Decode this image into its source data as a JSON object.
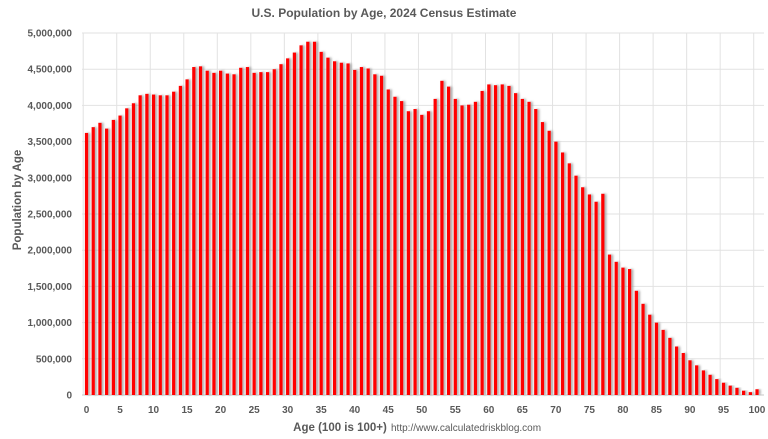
{
  "chart_data": {
    "type": "bar",
    "title": "U.S. Population by Age, 2024 Census Estimate",
    "xlabel": "Age (100 is 100+)",
    "ylabel": "Population by Age",
    "source": "http://www.calculatedriskblog.com",
    "ylim": [
      0,
      5000000
    ],
    "y_ticks": [
      "0",
      "500,000",
      "1,000,000",
      "1,500,000",
      "2,000,000",
      "2,500,000",
      "3,000,000",
      "3,500,000",
      "4,000,000",
      "4,500,000",
      "5,000,000"
    ],
    "x_ticks": [
      "0",
      "5",
      "10",
      "15",
      "20",
      "25",
      "30",
      "35",
      "40",
      "45",
      "50",
      "55",
      "60",
      "65",
      "70",
      "75",
      "80",
      "85",
      "90",
      "95",
      "100"
    ],
    "grid": true,
    "bar_color": "#ff0000",
    "categories_start": 0,
    "values": [
      3620000,
      3700000,
      3760000,
      3680000,
      3800000,
      3860000,
      3960000,
      4030000,
      4140000,
      4160000,
      4150000,
      4140000,
      4140000,
      4190000,
      4270000,
      4360000,
      4530000,
      4540000,
      4480000,
      4450000,
      4480000,
      4440000,
      4430000,
      4520000,
      4530000,
      4450000,
      4460000,
      4460000,
      4500000,
      4570000,
      4650000,
      4730000,
      4830000,
      4880000,
      4880000,
      4740000,
      4660000,
      4610000,
      4590000,
      4580000,
      4490000,
      4530000,
      4510000,
      4430000,
      4410000,
      4220000,
      4120000,
      4060000,
      3920000,
      3950000,
      3870000,
      3920000,
      4090000,
      4340000,
      4260000,
      4090000,
      4000000,
      4010000,
      4050000,
      4200000,
      4290000,
      4280000,
      4290000,
      4270000,
      4170000,
      4090000,
      4050000,
      3950000,
      3770000,
      3650000,
      3500000,
      3350000,
      3200000,
      3030000,
      2870000,
      2770000,
      2670000,
      2780000,
      1940000,
      1840000,
      1760000,
      1740000,
      1440000,
      1260000,
      1110000,
      1000000,
      900000,
      790000,
      670000,
      580000,
      480000,
      410000,
      340000,
      280000,
      220000,
      170000,
      130000,
      100000,
      60000,
      40000,
      80000
    ]
  }
}
